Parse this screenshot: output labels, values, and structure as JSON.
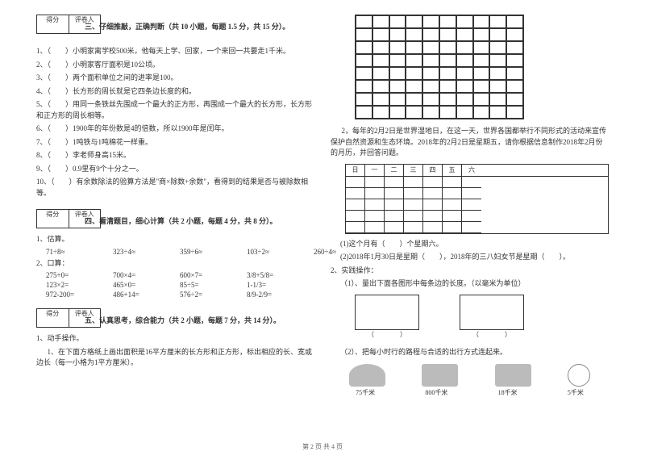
{
  "scoreHeader": {
    "col1": "得分",
    "col2": "评卷人"
  },
  "section3": {
    "title": "三、仔细推敲，正确判断（共 10 小题，每题 1.5 分，共 15 分）。",
    "items": [
      "1、（　　）小明家离学校500米，他每天上学、回家，一个来回一共要走1千米。",
      "2、（　　）小明家客厅面积是10公顷。",
      "3、（　　）两个面积单位之间的进率是100。",
      "4、（　　）长方形的周长就是它四条边长度的和。",
      "5、（　　）用同一条铁丝先围成一个最大的正方形，再围成一个最大的长方形，长方形和正方形的周长相等。",
      "6、（　　）1900年的年份数是4的倍数，所以1900年是闰年。",
      "7、（　　）1吨铁与1吨棉花一样重。",
      "8、（　　）李老师身高15米。",
      "9、（　　）0.9里有9个十分之一。",
      "10、（　　）有余数除法的验算方法是\"商×除数+余数\"，看得到的结果是否与被除数相等。"
    ]
  },
  "section4": {
    "title": "四、看清题目，细心计算（共 2 小题，每题 4 分，共 8 分）。",
    "est_label": "1、估算。",
    "est": [
      "71÷8≈",
      "323÷4≈",
      "359÷6≈",
      "103÷2≈",
      "260÷4≈"
    ],
    "oral_label": "2、口算：",
    "oral": [
      [
        "275+0=",
        "700×4=",
        "600×7=",
        "3/8+5/8="
      ],
      [
        "123×2=",
        "465×0=",
        "85÷5=",
        "1-1/3="
      ],
      [
        "972-200=",
        "486+14=",
        "576÷2=",
        "8/9-2/9="
      ]
    ]
  },
  "section5": {
    "title": "五、认真思考，综合能力（共 2 小题，每题 7 分，共 14 分）。",
    "op_label": "1、动手操作。",
    "op1": "1、在下面方格纸上画出面积是16平方厘米的长方形和正方形，标出相应的长、宽或边长（每一小格为1平方厘米）。"
  },
  "right": {
    "q2_intro": "2，每年的2月2日是世界湿地日，在这一天，世界各国都举行不同形式的活动来宣传保护自然资源和生态环境。2018年的2月2日是星期五，请你根据信息制作2018年2月份的月历，并回答问题。",
    "cal_days": [
      "日",
      "一",
      "二",
      "三",
      "四",
      "五",
      "六"
    ],
    "sub1": "(1)这个月有（　　）个星期六。",
    "sub2": "(2)2018年1月30日是星期（　　），2018年的三八妇女节是星期（　　）。",
    "prac_label": "2、实践操作：",
    "prac1": "（1）、量出下面各图形中每条边的长度。（以毫米为单位）",
    "box_l": "（　　　　）",
    "box_r": "（　　　　）",
    "prac2": "（2）、把每小时行的路程与合适的出行方式连起来。",
    "distances": [
      "75千米",
      "800千米",
      "18千米",
      "5千米"
    ]
  },
  "footer": "第 2 页 共 4 页"
}
